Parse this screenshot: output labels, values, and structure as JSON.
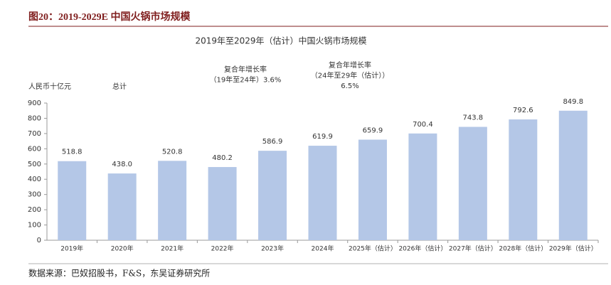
{
  "header": {
    "title": "图20：2019-2029E 中国火锅市场规模"
  },
  "footer": {
    "source": "数据来源：巴奴招股书，F&S，东吴证券研究所"
  },
  "chart_data": {
    "type": "bar",
    "title": "2019年至2029年（估计）中国火锅市场规模",
    "y_label": "人民币十亿元",
    "series_label": "总计",
    "annotations": [
      {
        "lines": [
          "复合年增长率",
          "（19年至24年）3.6%"
        ]
      },
      {
        "lines": [
          "复合年增长率",
          "（24年至29年（估计））",
          "6.5%"
        ]
      }
    ],
    "categories": [
      "2019年",
      "2020年",
      "2021年",
      "2022年",
      "2023年",
      "2024年",
      "2025年（估计）",
      "2026年（估计）",
      "2027年（估计）",
      "2028年（估计）",
      "2029年（估计）"
    ],
    "values": [
      518.8,
      438.0,
      520.8,
      480.2,
      586.9,
      619.9,
      659.9,
      700.4,
      743.8,
      792.6,
      849.8
    ],
    "value_labels": [
      "518.8",
      "438.0",
      "520.8",
      "480.2",
      "586.9",
      "619.9",
      "659.9",
      "700.4",
      "743.8",
      "792.6",
      "849.8"
    ],
    "color": "#b4c7e7",
    "ylim": [
      0,
      900
    ],
    "yticks": [
      0,
      100,
      200,
      300,
      400,
      500,
      600,
      700,
      800,
      900
    ]
  }
}
